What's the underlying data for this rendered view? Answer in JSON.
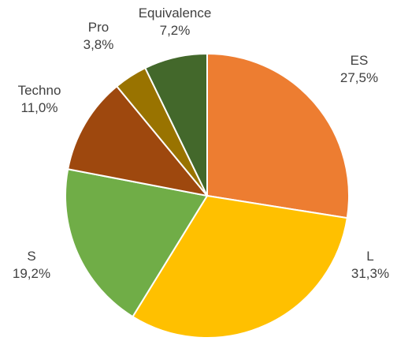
{
  "chart_data": {
    "type": "pie",
    "categories": [
      "ES",
      "L",
      "S",
      "Techno",
      "Pro",
      "Equivalence"
    ],
    "values": [
      27.5,
      31.3,
      19.2,
      11.0,
      3.8,
      7.2
    ],
    "value_labels": [
      "27,5%",
      "31,3%",
      "19,2%",
      "11,0%",
      "3,8%",
      "7,2%"
    ],
    "colors": [
      "#ED7D31",
      "#FFC000",
      "#70AD47",
      "#9E480E",
      "#997300",
      "#43682B"
    ]
  }
}
